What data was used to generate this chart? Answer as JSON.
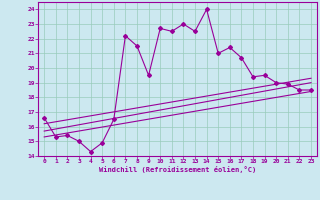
{
  "xlabel": "Windchill (Refroidissement éolien,°C)",
  "bg_color": "#cce8f0",
  "grid_color": "#99ccbb",
  "line_color": "#990099",
  "xlim": [
    -0.5,
    23.5
  ],
  "ylim": [
    14,
    24.5
  ],
  "xticks": [
    0,
    1,
    2,
    3,
    4,
    5,
    6,
    7,
    8,
    9,
    10,
    11,
    12,
    13,
    14,
    15,
    16,
    17,
    18,
    19,
    20,
    21,
    22,
    23
  ],
  "yticks": [
    14,
    15,
    16,
    17,
    18,
    19,
    20,
    21,
    22,
    23,
    24
  ],
  "main_line_x": [
    0,
    1,
    2,
    3,
    4,
    5,
    6,
    7,
    8,
    9,
    10,
    11,
    12,
    13,
    14,
    15,
    16,
    17,
    18,
    19,
    20,
    21,
    22,
    23
  ],
  "main_line_y": [
    16.6,
    15.3,
    15.4,
    15.0,
    14.3,
    14.9,
    16.5,
    22.2,
    21.5,
    19.5,
    22.7,
    22.5,
    23.0,
    22.5,
    24.0,
    21.0,
    21.4,
    20.7,
    19.4,
    19.5,
    19.0,
    18.9,
    18.5,
    18.5
  ],
  "line2_x": [
    0,
    23
  ],
  "line2_y": [
    15.3,
    18.4
  ],
  "line3_x": [
    0,
    23
  ],
  "line3_y": [
    15.7,
    19.0
  ],
  "line4_x": [
    0,
    23
  ],
  "line4_y": [
    16.2,
    19.3
  ]
}
